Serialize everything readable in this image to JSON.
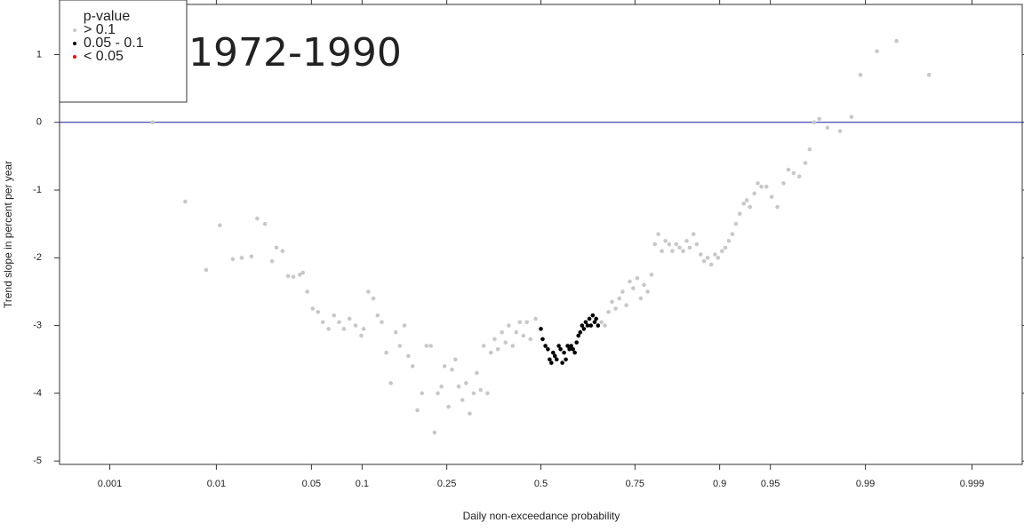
{
  "chart_data": {
    "type": "scatter",
    "xscale": "probit",
    "xlabel": "Daily non-exceedance probability",
    "ylabel": "Trend slope in percent per year",
    "annotation": "1972-1990",
    "legend_title": "p-value",
    "legend": "top-left",
    "xlim": [
      0.00028,
      0.99972
    ],
    "xticks": [
      0.001,
      0.01,
      0.05,
      0.1,
      0.25,
      0.5,
      0.75,
      0.9,
      0.95,
      0.99,
      0.999
    ],
    "ylim": [
      -5.05,
      1.74
    ],
    "yticks": [
      -5,
      -4,
      -3,
      -2,
      -1,
      0,
      1
    ],
    "hline": {
      "value": 0,
      "color": "#1a1aa6"
    },
    "series": [
      {
        "name": "> 0.1",
        "color": "#c8c8c8",
        "x": [
          0.0027,
          0.0054,
          0.0082,
          0.0107,
          0.0136,
          0.016,
          0.019,
          0.021,
          0.024,
          0.027,
          0.029,
          0.032,
          0.035,
          0.038,
          0.042,
          0.044,
          0.047,
          0.051,
          0.055,
          0.059,
          0.064,
          0.069,
          0.074,
          0.079,
          0.085,
          0.092,
          0.099,
          0.102,
          0.108,
          0.115,
          0.121,
          0.127,
          0.134,
          0.141,
          0.149,
          0.156,
          0.164,
          0.171,
          0.179,
          0.188,
          0.197,
          0.206,
          0.215,
          0.223,
          0.23,
          0.238,
          0.245,
          0.254,
          0.262,
          0.27,
          0.278,
          0.287,
          0.296,
          0.305,
          0.315,
          0.323,
          0.333,
          0.341,
          0.351,
          0.36,
          0.37,
          0.379,
          0.39,
          0.4,
          0.409,
          0.42,
          0.43,
          0.44,
          0.45,
          0.46,
          0.47,
          0.485,
          0.668,
          0.677,
          0.686,
          0.695,
          0.704,
          0.713,
          0.721,
          0.73,
          0.738,
          0.746,
          0.755,
          0.763,
          0.77,
          0.778,
          0.786,
          0.793,
          0.8,
          0.807,
          0.814,
          0.821,
          0.827,
          0.834,
          0.84,
          0.846,
          0.852,
          0.857,
          0.863,
          0.868,
          0.874,
          0.879,
          0.884,
          0.889,
          0.894,
          0.898,
          0.903,
          0.907,
          0.911,
          0.915,
          0.919,
          0.923,
          0.927,
          0.93,
          0.933,
          0.937,
          0.94,
          0.943,
          0.947,
          0.951,
          0.955,
          0.959,
          0.962,
          0.965,
          0.968,
          0.971,
          0.973,
          0.975,
          0.977,
          0.98,
          0.984,
          0.987,
          0.989,
          0.992,
          0.9946,
          0.9973
        ],
        "values": [
          0,
          -1.17,
          -2.18,
          -1.52,
          -2.02,
          -2.0,
          -1.98,
          -1.42,
          -1.5,
          -2.05,
          -1.85,
          -1.9,
          -2.27,
          -2.28,
          -2.25,
          -2.22,
          -2.5,
          -2.75,
          -2.8,
          -2.95,
          -3.05,
          -2.85,
          -2.95,
          -3.05,
          -2.9,
          -3.0,
          -3.15,
          -3.05,
          -2.5,
          -2.6,
          -2.85,
          -2.95,
          -3.4,
          -3.85,
          -3.1,
          -3.3,
          -3.0,
          -3.45,
          -3.6,
          -4.25,
          -4.0,
          -3.3,
          -3.3,
          -4.58,
          -4.0,
          -3.9,
          -3.6,
          -4.2,
          -3.65,
          -3.5,
          -3.9,
          -4.1,
          -3.85,
          -4.3,
          -4.0,
          -3.7,
          -3.95,
          -3.3,
          -4.0,
          -3.4,
          -3.2,
          -3.35,
          -3.1,
          -3.25,
          -3.0,
          -3.3,
          -3.1,
          -2.95,
          -3.15,
          -2.95,
          -3.2,
          -2.9,
          -2.95,
          -3.0,
          -2.8,
          -2.65,
          -2.75,
          -2.6,
          -2.5,
          -2.7,
          -2.35,
          -2.45,
          -2.3,
          -2.6,
          -2.4,
          -2.5,
          -2.25,
          -1.8,
          -1.65,
          -1.9,
          -1.75,
          -1.8,
          -1.9,
          -1.8,
          -1.85,
          -1.9,
          -1.75,
          -1.85,
          -1.65,
          -1.8,
          -1.95,
          -2.05,
          -2.0,
          -2.1,
          -1.95,
          -2.0,
          -1.9,
          -1.85,
          -1.75,
          -1.65,
          -1.5,
          -1.35,
          -1.2,
          -1.15,
          -1.25,
          -1.05,
          -0.9,
          -0.95,
          -0.95,
          -1.1,
          -1.25,
          -0.9,
          -0.7,
          -0.75,
          -0.8,
          -0.6,
          -0.4,
          0.0,
          0.05,
          -0.08,
          -0.13,
          0.08,
          0.7,
          1.05,
          1.2,
          0.7
        ]
      },
      {
        "name": "0.05 - 0.1",
        "color": "#000000",
        "x": [
          0.5,
          0.505,
          0.513,
          0.52,
          0.525,
          0.53,
          0.535,
          0.54,
          0.545,
          0.551,
          0.556,
          0.561,
          0.566,
          0.571,
          0.576,
          0.581,
          0.586,
          0.591,
          0.596,
          0.601,
          0.606,
          0.611,
          0.616,
          0.621,
          0.626,
          0.631,
          0.636,
          0.64,
          0.645,
          0.65,
          0.654,
          0.659
        ],
        "values": [
          -3.05,
          -3.2,
          -3.3,
          -3.35,
          -3.5,
          -3.55,
          -3.4,
          -3.45,
          -3.5,
          -3.3,
          -3.35,
          -3.55,
          -3.4,
          -3.5,
          -3.3,
          -3.35,
          -3.3,
          -3.35,
          -3.4,
          -3.25,
          -3.15,
          -3.1,
          -3.0,
          -3.05,
          -2.95,
          -3.0,
          -2.9,
          -3.0,
          -2.85,
          -2.95,
          -2.9,
          -3.0
        ]
      },
      {
        "name": "< 0.05",
        "color": "#ff0000",
        "x": [],
        "values": []
      }
    ]
  }
}
